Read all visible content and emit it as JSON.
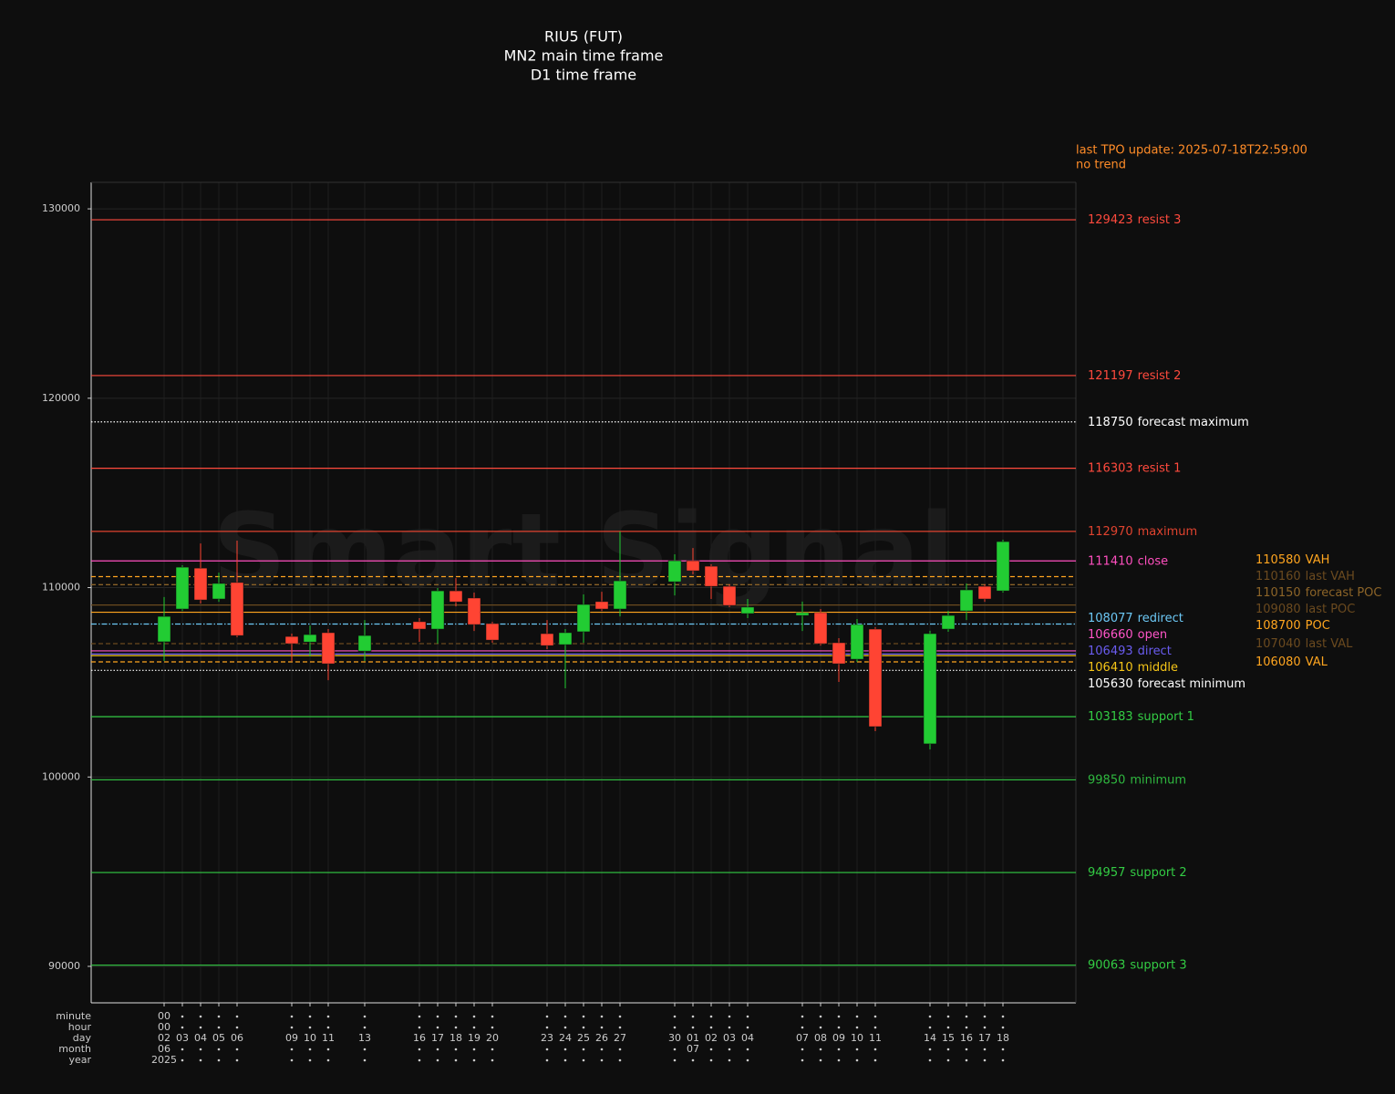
{
  "chart_data": {
    "type": "candlestick",
    "title_lines": [
      "RIU5 (FUT)",
      "MN2 main time frame",
      "D1 time frame"
    ],
    "update_note": "last TPO update: 2025-07-18T22:59:00",
    "trend_note": "no trend",
    "watermark": "Smart Signal",
    "x": [
      "2025-06-02",
      "2025-06-03",
      "2025-06-04",
      "2025-06-05",
      "2025-06-06",
      "2025-06-09",
      "2025-06-10",
      "2025-06-11",
      "2025-06-13",
      "2025-06-16",
      "2025-06-17",
      "2025-06-18",
      "2025-06-19",
      "2025-06-20",
      "2025-06-23",
      "2025-06-24",
      "2025-06-25",
      "2025-06-26",
      "2025-06-27",
      "2025-06-30",
      "2025-07-01",
      "2025-07-02",
      "2025-07-03",
      "2025-07-04",
      "2025-07-07",
      "2025-07-08",
      "2025-07-09",
      "2025-07-10",
      "2025-07-11",
      "2025-07-14",
      "2025-07-15",
      "2025-07-16",
      "2025-07-17",
      "2025-07-18"
    ],
    "open": [
      107140,
      108870,
      111030,
      109400,
      110270,
      107420,
      107130,
      107620,
      106650,
      108200,
      107810,
      109830,
      109450,
      108100,
      107570,
      106990,
      107670,
      109260,
      108870,
      110310,
      111420,
      111130,
      110070,
      108630,
      108530,
      108680,
      107090,
      106220,
      107810,
      101750,
      107810,
      108770,
      110070,
      109830
    ],
    "high": [
      109500,
      111180,
      112330,
      110790,
      112480,
      107570,
      108000,
      107810,
      108290,
      108390,
      109980,
      110500,
      109740,
      108190,
      108290,
      107810,
      109640,
      109780,
      112960,
      111760,
      112090,
      111230,
      110170,
      109400,
      109260,
      108870,
      107330,
      108340,
      107910,
      107720,
      108770,
      110220,
      110170,
      112530
    ],
    "low": [
      106130,
      108770,
      109160,
      109250,
      107380,
      106120,
      106370,
      105110,
      106130,
      107140,
      107040,
      109010,
      107710,
      107090,
      106750,
      104680,
      107090,
      108770,
      108480,
      109590,
      110700,
      109400,
      108970,
      108390,
      107710,
      106940,
      105020,
      106080,
      102420,
      101460,
      107670,
      108290,
      109250,
      109740
    ],
    "close": [
      108480,
      111080,
      109350,
      110220,
      107470,
      107040,
      107520,
      105980,
      107470,
      107810,
      109830,
      109250,
      108050,
      107230,
      106940,
      107620,
      109110,
      108870,
      110360,
      111420,
      110890,
      110070,
      109060,
      108970,
      108680,
      107040,
      105980,
      108050,
      102660,
      107570,
      108530,
      109880,
      109400,
      112430
    ],
    "up_color": "#22cc33",
    "down_color": "#ff4433",
    "xlim": [
      "2025-05-29",
      "2025-07-22"
    ],
    "ylim": [
      88075,
      131400
    ],
    "yticks": [
      90000,
      100000,
      110000,
      120000,
      130000
    ],
    "grid": true,
    "x_axis_rows": [
      {
        "name": "minute",
        "labels": [
          "00",
          null,
          null,
          null,
          null,
          null,
          null,
          null,
          null,
          null,
          null,
          null,
          null,
          null,
          null,
          null,
          null,
          null,
          null,
          null,
          null,
          null,
          null,
          null,
          null,
          null,
          null,
          null,
          null,
          null,
          null,
          null,
          null,
          null
        ]
      },
      {
        "name": "hour",
        "labels": [
          "00",
          null,
          null,
          null,
          null,
          null,
          null,
          null,
          null,
          null,
          null,
          null,
          null,
          null,
          null,
          null,
          null,
          null,
          null,
          null,
          null,
          null,
          null,
          null,
          null,
          null,
          null,
          null,
          null,
          null,
          null,
          null,
          null,
          null
        ]
      },
      {
        "name": "day",
        "labels": [
          "02",
          "03",
          "04",
          "05",
          "06",
          "09",
          "10",
          "11",
          "13",
          "16",
          "17",
          "18",
          "19",
          "20",
          "23",
          "24",
          "25",
          "26",
          "27",
          "30",
          "01",
          "02",
          "03",
          "04",
          "07",
          "08",
          "09",
          "10",
          "11",
          "14",
          "15",
          "16",
          "17",
          "18"
        ]
      },
      {
        "name": "month",
        "labels": [
          "06",
          null,
          null,
          null,
          null,
          null,
          null,
          null,
          null,
          null,
          null,
          null,
          null,
          null,
          null,
          null,
          null,
          null,
          null,
          null,
          "07",
          null,
          null,
          null,
          null,
          null,
          null,
          null,
          null,
          null,
          null,
          null,
          null,
          null
        ]
      },
      {
        "name": "year",
        "labels": [
          "2025",
          null,
          null,
          null,
          null,
          null,
          null,
          null,
          null,
          null,
          null,
          null,
          null,
          null,
          null,
          null,
          null,
          null,
          null,
          null,
          null,
          null,
          null,
          null,
          null,
          null,
          null,
          null,
          null,
          null,
          null,
          null,
          null,
          null
        ]
      }
    ],
    "levels": [
      {
        "value": 129423,
        "name": "resist 3",
        "color": "#ff4a3d",
        "style": "solid"
      },
      {
        "value": 121197,
        "name": "resist 2",
        "color": "#ff4a3d",
        "style": "solid"
      },
      {
        "value": 118750,
        "name": "forecast maximum",
        "color": "#ffffff",
        "style": "dotted"
      },
      {
        "value": 116303,
        "name": "resist 1",
        "color": "#ff4a3d",
        "style": "solid"
      },
      {
        "value": 112970,
        "name": "maximum",
        "color": "#e0432f",
        "style": "solid"
      },
      {
        "value": 111410,
        "name": "close",
        "color": "#ff4fbf",
        "style": "solid"
      },
      {
        "value": 108077,
        "name": "redirect",
        "color": "#6cc8f5",
        "style": "dashdot"
      },
      {
        "value": 106660,
        "name": "open",
        "color": "#ff55c8",
        "style": "solid"
      },
      {
        "value": 106493,
        "name": "direct",
        "color": "#6a5cf0",
        "style": "solid"
      },
      {
        "value": 106410,
        "name": "middle",
        "color": "#f5c518",
        "style": "solid"
      },
      {
        "value": 105630,
        "name": "forecast minimum",
        "color": "#ffffff",
        "style": "dotted"
      },
      {
        "value": 103183,
        "name": "support 1",
        "color": "#33cc44",
        "style": "solid"
      },
      {
        "value": 99850,
        "name": "minimum",
        "color": "#2fb83f",
        "style": "solid"
      },
      {
        "value": 94957,
        "name": "support 2",
        "color": "#33cc44",
        "style": "solid"
      },
      {
        "value": 90063,
        "name": "support 3",
        "color": "#33cc44",
        "style": "solid"
      }
    ],
    "profile_levels": [
      {
        "value": 110580,
        "name": "VAH",
        "color": "#ffa51f",
        "style": "dashed"
      },
      {
        "value": 110160,
        "name": "last VAH",
        "color": "#6b4a1f",
        "style": "dashed"
      },
      {
        "value": 110150,
        "name": "forecast POC",
        "color": "#8c6428",
        "style": "dashed"
      },
      {
        "value": 109080,
        "name": "last POC",
        "color": "#6b4a1f",
        "style": "solid"
      },
      {
        "value": 108700,
        "name": "POC",
        "color": "#ffa51f",
        "style": "solid"
      },
      {
        "value": 107040,
        "name": "last VAL",
        "color": "#6b4a1f",
        "style": "dashed"
      },
      {
        "value": 106080,
        "name": "VAL",
        "color": "#ffa51f",
        "style": "dashed"
      }
    ]
  }
}
